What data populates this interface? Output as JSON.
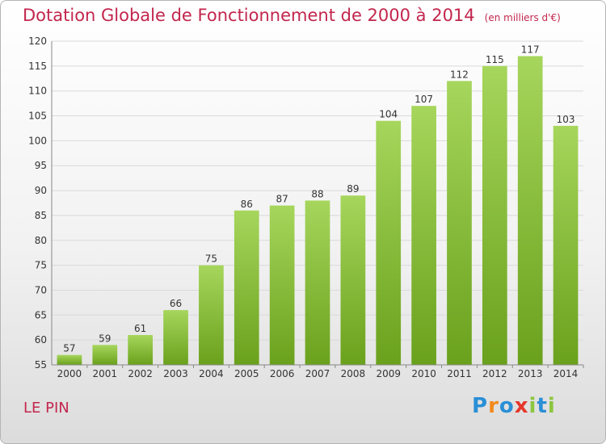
{
  "title": "Dotation Globale de Fonctionnement de 2000 à 2014",
  "unit": "(en milliers d'€)",
  "commune": "LE PIN",
  "logo": {
    "text": "Proxiti",
    "letters": [
      "P",
      "r",
      "o",
      "x",
      "i",
      "t",
      "i"
    ],
    "colors": [
      "#2a8fd6",
      "#f28a1b",
      "#2a8fd6",
      "#e6362c",
      "#8cc63f",
      "#2a8fd6",
      "#8cc63f"
    ]
  },
  "colors": {
    "bar_light": "#a6d65c",
    "bar_dark": "#6aa11c",
    "grid": "#d9d9d9",
    "axis": "#888888"
  },
  "chart_data": {
    "type": "bar",
    "categories": [
      "2000",
      "2001",
      "2002",
      "2003",
      "2004",
      "2005",
      "2006",
      "2007",
      "2008",
      "2009",
      "2010",
      "2011",
      "2012",
      "2013",
      "2014"
    ],
    "values": [
      57,
      59,
      61,
      66,
      75,
      86,
      87,
      88,
      89,
      104,
      107,
      112,
      115,
      117,
      103
    ],
    "ylim": [
      55,
      120
    ],
    "yticks": [
      55,
      60,
      65,
      70,
      75,
      80,
      85,
      90,
      95,
      100,
      105,
      110,
      115,
      120
    ],
    "grid": true,
    "title": "Dotation Globale de Fonctionnement de 2000 à 2014",
    "xlabel": "",
    "ylabel": ""
  }
}
